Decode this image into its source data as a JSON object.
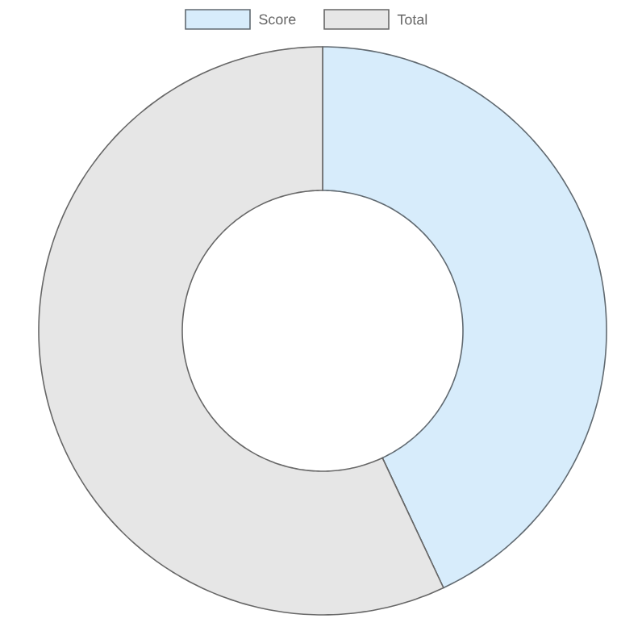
{
  "chart_data": {
    "type": "donut",
    "categories": [
      "Score",
      "Total"
    ],
    "values": [
      43,
      57
    ],
    "colors": [
      "#d7ecfb",
      "#e6e6e6"
    ],
    "legend": "top"
  }
}
